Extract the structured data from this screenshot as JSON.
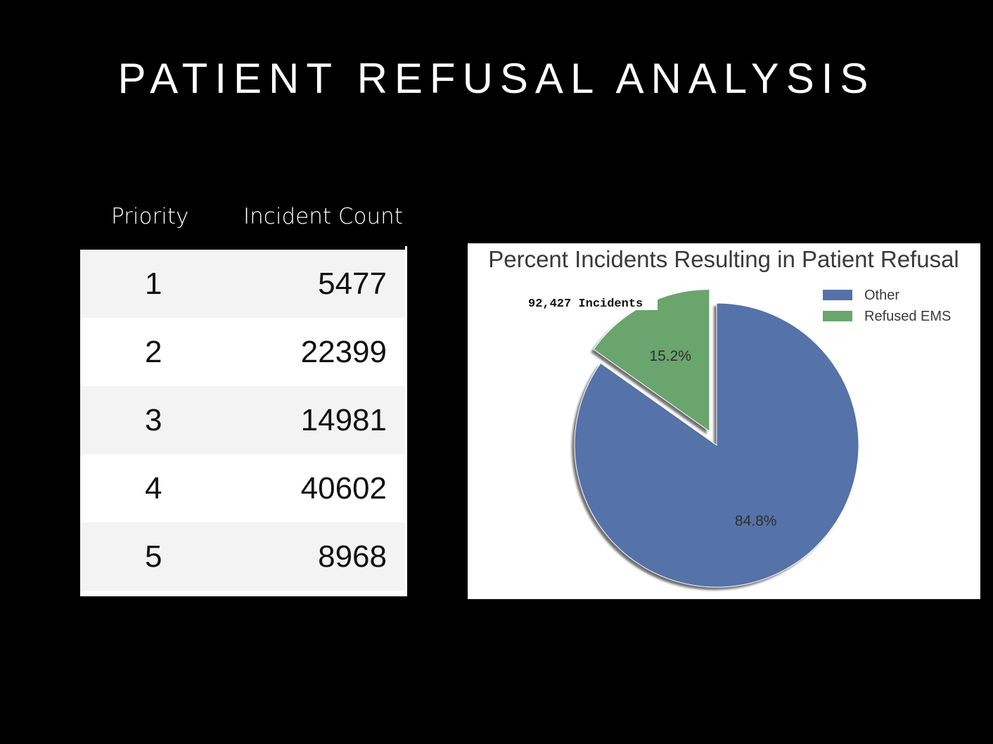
{
  "slide": {
    "title": "PATIENT REFUSAL ANALYSIS"
  },
  "table": {
    "headers": [
      "Priority",
      "Incident Count"
    ],
    "rows": [
      {
        "priority": "1",
        "count": "5477"
      },
      {
        "priority": "2",
        "count": "22399"
      },
      {
        "priority": "3",
        "count": "14981"
      },
      {
        "priority": "4",
        "count": "40602"
      },
      {
        "priority": "5",
        "count": "8968"
      }
    ]
  },
  "chart_data": {
    "type": "pie",
    "title": "Percent Incidents Resulting in Patient Refusal",
    "annotation": "92,427 Incidents",
    "slices": [
      {
        "label": "Other",
        "value": 84.8,
        "display": "84.8%",
        "color": "#5572a9",
        "exploded": false
      },
      {
        "label": "Refused EMS",
        "value": 15.2,
        "display": "15.2%",
        "color": "#69a56d",
        "exploded": true
      }
    ],
    "legend": {
      "position": "top-right",
      "entries": [
        "Other",
        "Refused EMS"
      ]
    },
    "shadow": true
  }
}
